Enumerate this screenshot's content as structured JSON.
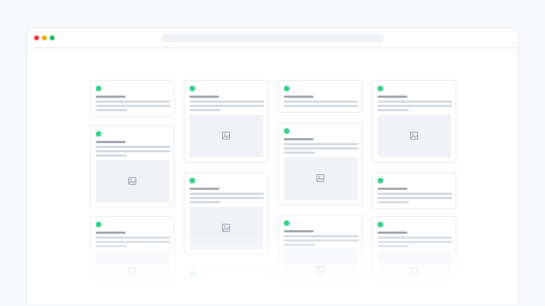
{
  "window": {
    "controls": [
      {
        "name": "close",
        "color": "#f5303f"
      },
      {
        "name": "minimize",
        "color": "#f2ad00"
      },
      {
        "name": "maximize",
        "color": "#1bbc5a"
      }
    ]
  },
  "colors": {
    "status_dot": "#34d18a",
    "title_bar": "#9ca0a8",
    "text_line": "#d3d8e0",
    "image_placeholder": "#f0f2f6"
  },
  "cards": {
    "icons": {
      "status": "status-dot-icon",
      "image": "image-placeholder-icon"
    }
  }
}
